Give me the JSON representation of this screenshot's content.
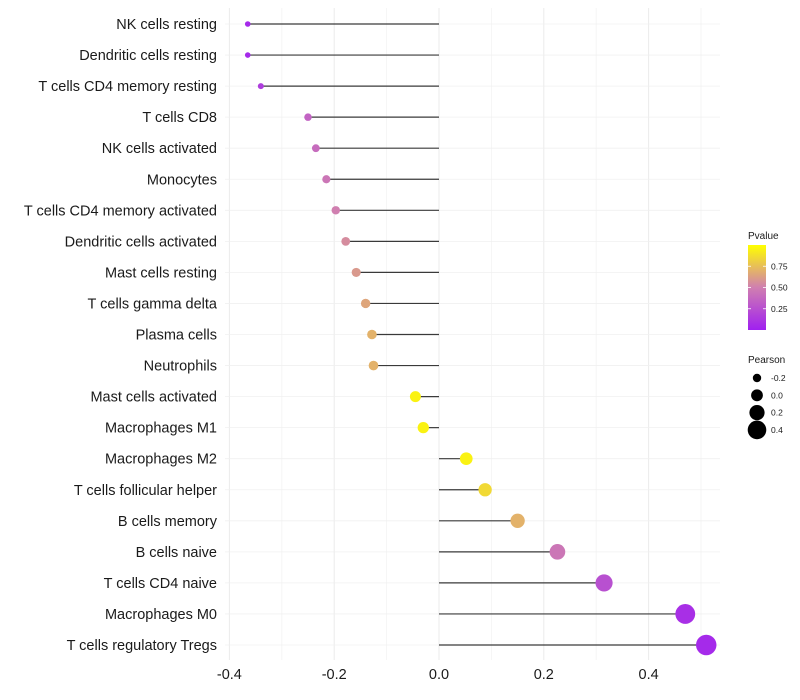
{
  "chart_data": {
    "type": "lollipop",
    "categories": [
      "NK cells resting",
      "Dendritic cells resting",
      "T cells CD4 memory resting",
      "T cells CD8",
      "NK cells activated",
      "Monocytes",
      "T cells CD4 memory activated",
      "Dendritic cells activated",
      "Mast cells resting",
      "T cells gamma delta",
      "Plasma cells",
      "Neutrophils",
      "Mast cells activated",
      "Macrophages M1",
      "Macrophages M2",
      "T cells follicular helper",
      "B cells memory",
      "B cells naive",
      "T cells CD4 naive",
      "Macrophages M0",
      "T cells regulatory  Tregs"
    ],
    "pearson": [
      -0.365,
      -0.365,
      -0.34,
      -0.25,
      -0.235,
      -0.215,
      -0.197,
      -0.178,
      -0.158,
      -0.14,
      -0.128,
      -0.125,
      -0.045,
      -0.03,
      0.052,
      0.088,
      0.15,
      0.226,
      0.315,
      0.47,
      0.51
    ],
    "pvalue": [
      0.05,
      0.05,
      0.15,
      0.35,
      0.4,
      0.45,
      0.5,
      0.55,
      0.6,
      0.65,
      0.7,
      0.7,
      0.95,
      0.95,
      0.95,
      0.85,
      0.7,
      0.45,
      0.25,
      0.08,
      0.05
    ],
    "xlim": [
      -0.42,
      0.53
    ],
    "xticks": [
      -0.4,
      -0.2,
      0.0,
      0.2,
      0.4
    ],
    "xtick_labels": [
      "-0.4",
      "-0.2",
      "0.0",
      "0.2",
      "0.4"
    ],
    "baseline": 0.0,
    "grid": true,
    "legend_color": {
      "title": "Pvalue",
      "ticks": [
        0.75,
        0.5,
        0.25
      ],
      "tick_labels": [
        "0.75",
        "0.50",
        "0.25"
      ],
      "range": [
        0.0,
        1.0
      ],
      "low_color": "#a020f0",
      "mid_color": "#d07fb0",
      "high_color": "#ffff00",
      "placement": "right"
    },
    "legend_size": {
      "title": "Pearson",
      "values": [
        -0.2,
        0.0,
        0.2,
        0.4
      ],
      "labels": [
        "-0.2",
        "0.0",
        "0.2",
        "0.4"
      ],
      "placement": "right"
    }
  }
}
